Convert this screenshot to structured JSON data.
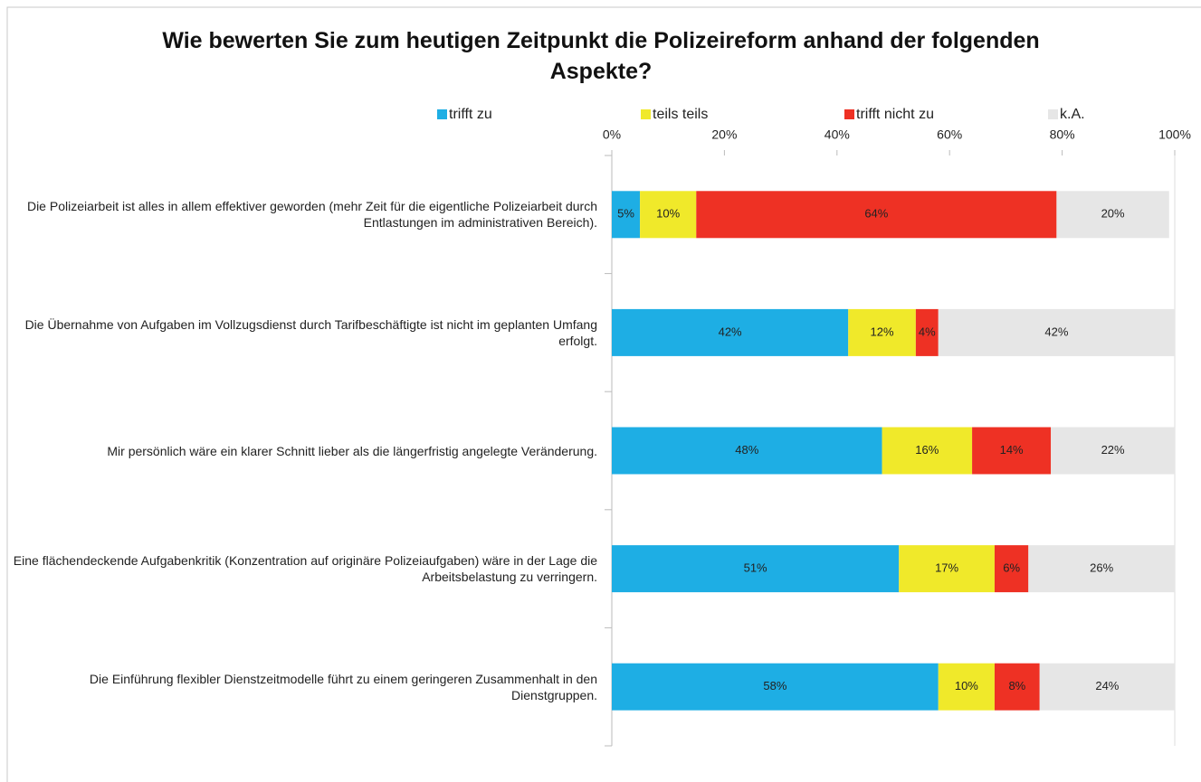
{
  "chart_data": {
    "type": "stacked_bar_horizontal",
    "title": "Wie bewerten Sie zum heutigen Zeitpunkt die Polizeireform anhand der folgenden Aspekte?",
    "categories": [
      "Die Polizeiarbeit ist alles in allem effektiver geworden (mehr Zeit für die eigentliche Polizeiarbeit durch Entlastungen im administrativen Bereich).",
      "Die Übernahme von Aufgaben im Vollzugsdienst durch Tarifbeschäftigte ist nicht im geplanten Umfang erfolgt.",
      "Mir persönlich wäre ein klarer Schnitt lieber als die längerfristig angelegte Veränderung.",
      "Eine flächendeckende Aufgabenkritik (Konzentration auf originäre Polizeiaufgaben) wäre in der Lage die Arbeitsbelastung zu verringern.",
      "Die Einführung flexibler Dienstzeitmodelle führt zu einem geringeren Zusammenhalt in den Dienstgruppen."
    ],
    "series": [
      {
        "name": "trifft zu",
        "color": "#1eaee4",
        "values": [
          5,
          42,
          48,
          51,
          58
        ],
        "value_labels": [
          "5%",
          "42%",
          "48%",
          "51%",
          "58%"
        ]
      },
      {
        "name": "teils teils",
        "color": "#f0e92a",
        "values": [
          10,
          12,
          16,
          17,
          10
        ],
        "value_labels": [
          "10%",
          "12%",
          "16%",
          "17%",
          "10%"
        ]
      },
      {
        "name": "trifft nicht zu",
        "color": "#ee3124",
        "values": [
          64,
          4,
          14,
          6,
          8
        ],
        "value_labels": [
          "64%",
          "4%",
          "14%",
          "6%",
          "8%"
        ]
      },
      {
        "name": "k.A.",
        "color": "#e6e6e6",
        "values": [
          20,
          42,
          22,
          26,
          24
        ],
        "value_labels": [
          "20%",
          "42%",
          "22%",
          "26%",
          "24%"
        ]
      }
    ],
    "xlim": [
      0,
      100
    ],
    "xticks": [
      {
        "value": 0,
        "label": "0%"
      },
      {
        "value": 20,
        "label": "20%"
      },
      {
        "value": 40,
        "label": "40%"
      },
      {
        "value": 60,
        "label": "60%"
      },
      {
        "value": 80,
        "label": "80%"
      },
      {
        "value": 100,
        "label": "100%"
      }
    ],
    "legend": "top",
    "grid": false
  }
}
